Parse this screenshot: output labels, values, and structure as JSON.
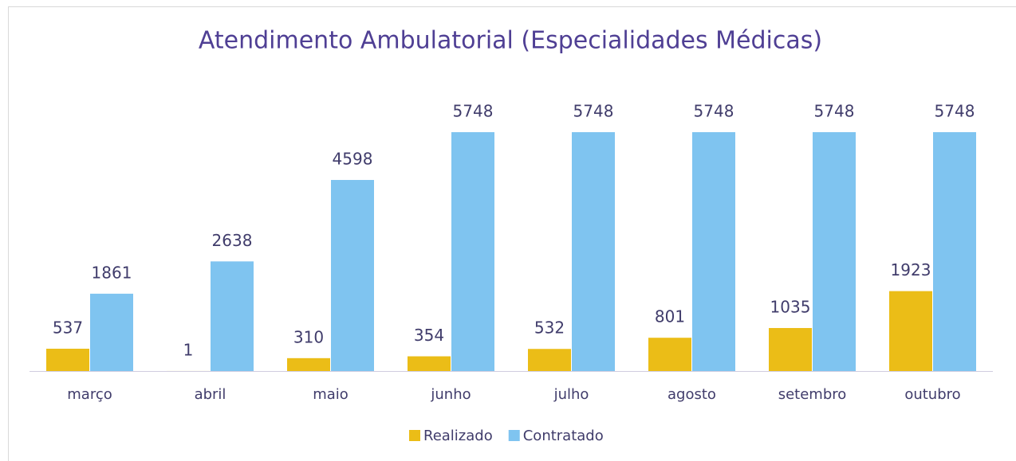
{
  "chart_data": {
    "type": "bar",
    "title": "Atendimento Ambulatorial (Especialidades Médicas)",
    "categories": [
      "março",
      "abril",
      "maio",
      "junho",
      "julho",
      "agosto",
      "setembro",
      "outubro"
    ],
    "series": [
      {
        "name": "Realizado",
        "color": "#ebbd17",
        "values": [
          537,
          1,
          310,
          354,
          532,
          801,
          1035,
          1923
        ]
      },
      {
        "name": "Contratado",
        "color": "#7fc4f0",
        "values": [
          1861,
          2638,
          4598,
          5748,
          5748,
          5748,
          5748,
          5748
        ]
      }
    ],
    "legend": "bottom"
  }
}
